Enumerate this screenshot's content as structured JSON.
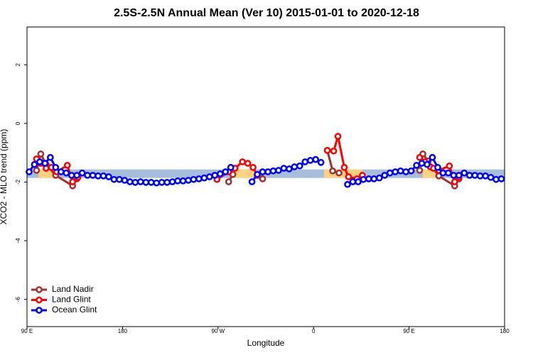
{
  "chart_data": {
    "type": "line",
    "title": "2.5S-2.5N Annual Mean (Ver 10)   2015-01-01 to 2020-12-18",
    "x_label": "Longitude",
    "y_label": "XCO2 - MLO trend (ppm)",
    "xlim": [
      90,
      540
    ],
    "ylim": [
      -6.93,
      3.29
    ],
    "xticks": [
      {
        "value": 90,
        "label": "90 E"
      },
      180,
      {
        "value": 270,
        "label": "90 W"
      },
      {
        "value": 360,
        "label": "0"
      },
      {
        "value": 450,
        "label": "90 E"
      },
      {
        "value": 540,
        "label": "180"
      }
    ],
    "yticks": [
      -6,
      -4,
      -2,
      0,
      2
    ],
    "legend_position": "bottom-left",
    "reference_band": {
      "range": [
        -1.86,
        -1.57
      ],
      "color": "#a6bddb"
    },
    "land_spans": {
      "color": "#ffd27f",
      "x": [
        [
          101,
          115
        ],
        [
          286,
          305
        ],
        [
          370,
          406
        ],
        [
          463,
          476
        ]
      ]
    },
    "series": [
      {
        "name": "Land Nadir",
        "color": "#a33030",
        "x": [
          99,
          103,
          108,
          117,
          133,
          137,
          null,
          280,
          284,
          null,
          309,
          312,
          null,
          373,
          378,
          384,
          null,
          460,
          463,
          468,
          478,
          493,
          497
        ],
        "values": [
          -1.6,
          -1.04,
          -1.4,
          -1.77,
          -2.13,
          -1.89,
          null,
          -1.99,
          -1.74,
          null,
          -1.77,
          -1.89,
          null,
          -0.92,
          -1.62,
          -1.69,
          null,
          -1.6,
          -1.04,
          -1.28,
          -1.79,
          -2.13,
          -1.89
        ]
      },
      {
        "name": "Land Glint",
        "color": "#ff0000",
        "x": [
          99,
          103,
          108,
          113,
          118,
          128,
          133,
          138,
          null,
          269,
          280,
          286,
          293,
          298,
          303,
          307,
          null,
          373,
          379,
          383,
          389,
          393,
          401,
          406,
          null,
          460,
          465,
          470,
          473,
          478,
          488,
          493,
          497
        ],
        "values": [
          -1.21,
          -1.36,
          -1.53,
          -1.5,
          -1.65,
          -1.43,
          -1.99,
          -1.84,
          null,
          -1.91,
          -1.65,
          -1.53,
          -1.31,
          -1.36,
          -1.5,
          -1.77,
          null,
          -0.92,
          -0.94,
          -0.44,
          -1.5,
          -1.82,
          -1.89,
          -1.77,
          null,
          -1.16,
          -1.31,
          -1.48,
          -1.53,
          -1.6,
          -1.45,
          -1.99,
          -1.84
        ]
      },
      {
        "name": "Ocean Glint",
        "color": "#0000ff",
        "x": [
          92,
          97,
          102,
          107,
          112,
          117,
          122,
          127,
          132,
          137,
          142,
          147,
          152,
          157,
          162,
          167,
          172,
          177,
          182,
          187,
          192,
          197,
          202,
          207,
          212,
          217,
          222,
          227,
          232,
          237,
          242,
          247,
          252,
          257,
          262,
          267,
          272,
          277,
          282,
          null,
          302,
          307,
          312,
          317,
          322,
          327,
          332,
          337,
          342,
          347,
          352,
          357,
          362,
          367,
          null,
          392,
          397,
          402,
          407,
          412,
          417,
          422,
          427,
          432,
          437,
          442,
          447,
          452,
          457,
          462,
          467,
          472,
          477,
          482,
          487,
          492,
          497,
          502,
          507,
          512,
          517,
          522,
          527,
          532,
          537
        ],
        "values": [
          -1.65,
          -1.4,
          -1.31,
          -1.36,
          -1.16,
          -1.5,
          -1.65,
          -1.69,
          -1.77,
          -1.77,
          -1.69,
          -1.77,
          -1.77,
          -1.79,
          -1.79,
          -1.82,
          -1.91,
          -1.91,
          -1.94,
          -1.99,
          -2.01,
          -1.99,
          -2.01,
          -2.01,
          -2.03,
          -2.01,
          -2.01,
          -1.99,
          -1.96,
          -1.96,
          -1.94,
          -1.91,
          -1.89,
          -1.86,
          -1.82,
          -1.77,
          -1.72,
          -1.65,
          -1.5,
          null,
          -1.99,
          -1.74,
          -1.65,
          -1.65,
          -1.62,
          -1.6,
          -1.53,
          -1.55,
          -1.48,
          -1.45,
          -1.31,
          -1.26,
          -1.23,
          -1.33,
          null,
          -2.08,
          -1.99,
          -1.99,
          -1.91,
          -1.89,
          -1.89,
          -1.86,
          -1.77,
          -1.69,
          -1.65,
          -1.62,
          -1.65,
          -1.62,
          -1.43,
          -1.36,
          -1.4,
          -1.16,
          -1.5,
          -1.69,
          -1.69,
          -1.77,
          -1.77,
          -1.69,
          -1.77,
          -1.77,
          -1.79,
          -1.79,
          -1.84,
          -1.91,
          -1.89
        ]
      }
    ]
  }
}
